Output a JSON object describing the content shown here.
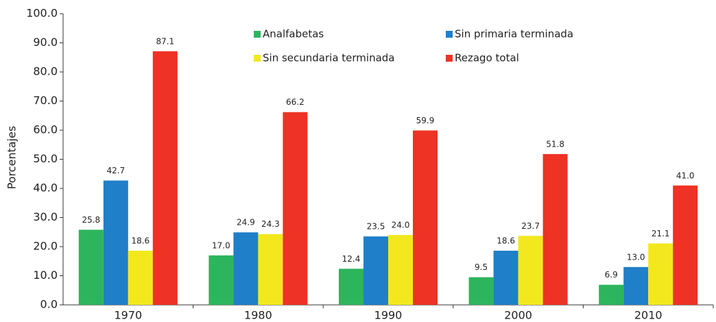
{
  "chart_data": {
    "type": "bar",
    "y_label": "Porcentajes",
    "categories": [
      "1970",
      "1980",
      "1990",
      "2000",
      "2010"
    ],
    "series": [
      {
        "name": "Analfabetas",
        "color": "#2db55d",
        "values": [
          25.8,
          17.0,
          12.4,
          9.5,
          6.9
        ],
        "value_labels": [
          "25.8",
          "17.0",
          "12.4",
          "9.5",
          "6.9"
        ]
      },
      {
        "name": "Sin primaria terminada",
        "color": "#1f7fc9",
        "values": [
          42.7,
          24.9,
          23.5,
          18.6,
          13.0
        ],
        "value_labels": [
          "42.7",
          "24.9",
          "23.5",
          "18.6",
          "13.0"
        ]
      },
      {
        "name": "Sin secundaria terminada",
        "color": "#f3e81e",
        "values": [
          18.6,
          24.3,
          24.0,
          23.7,
          21.1
        ],
        "value_labels": [
          "18.6",
          "24.3",
          "24.0",
          "23.7",
          "21.1"
        ]
      },
      {
        "name": "Rezago total",
        "color": "#ee3224",
        "values": [
          87.1,
          66.2,
          59.9,
          51.8,
          41.0
        ],
        "value_labels": [
          "87.1",
          "66.2",
          "59.9",
          "51.8",
          "41.0"
        ]
      }
    ],
    "ylim": [
      0,
      100
    ],
    "yticks": [
      {
        "value": 0,
        "label": "0.0"
      },
      {
        "value": 10,
        "label": "10.0"
      },
      {
        "value": 20,
        "label": "20.0"
      },
      {
        "value": 30,
        "label": "30.0"
      },
      {
        "value": 40,
        "label": "40.0"
      },
      {
        "value": 50,
        "label": "50.0"
      },
      {
        "value": 60,
        "label": "60.0"
      },
      {
        "value": 70,
        "label": "70.0"
      },
      {
        "value": 80,
        "label": "80.0"
      },
      {
        "value": 90,
        "label": "90.0"
      },
      {
        "value": 100,
        "label": "100.0"
      }
    ],
    "legend": "top"
  }
}
